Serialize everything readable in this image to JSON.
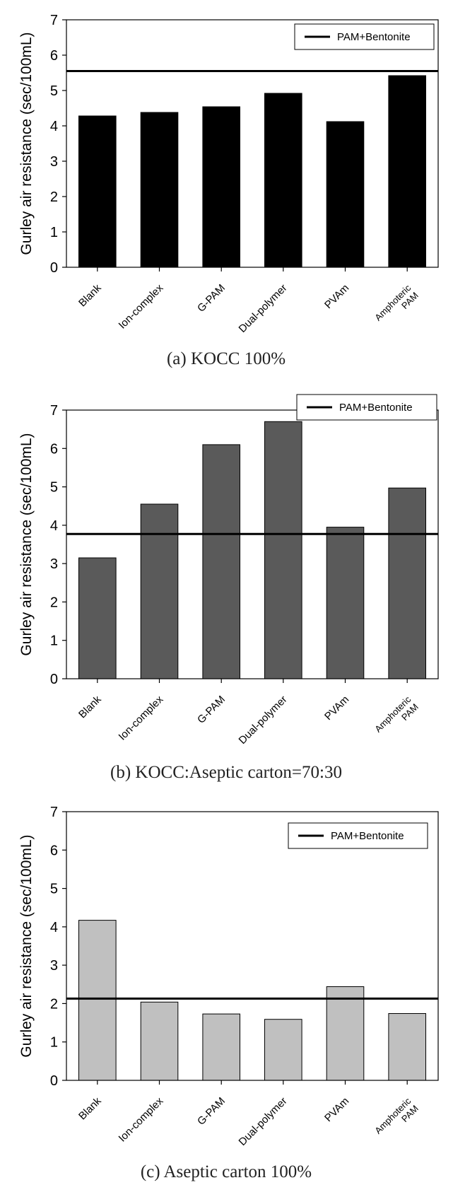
{
  "chart_data": [
    {
      "type": "bar",
      "title": "",
      "caption": "(a) KOCC 100%",
      "ylabel": "Gurley air resistance (sec/100mL)",
      "xlabel": "",
      "ylim": [
        0,
        7
      ],
      "yticks": [
        "0",
        "1",
        "2",
        "3",
        "4",
        "5",
        "6",
        "7"
      ],
      "categories": [
        "Blank",
        "Ion-complex",
        "G-PAM",
        "Dual-polymer",
        "PVAm",
        "Amphoteric PAM"
      ],
      "category_lines": [
        [
          "Blank"
        ],
        [
          "Ion-complex"
        ],
        [
          "G-PAM"
        ],
        [
          "Dual-polymer"
        ],
        [
          "PVAm"
        ],
        [
          "Amphoteric",
          "PAM"
        ]
      ],
      "values": [
        4.28,
        4.38,
        4.54,
        4.92,
        4.12,
        5.42
      ],
      "bar_color": "#000000",
      "reference_line": {
        "name": "PAM+Bentonite",
        "value": 5.55
      },
      "legend_position": "top-right",
      "grid": false
    },
    {
      "type": "bar",
      "title": "",
      "caption": "(b) KOCC:Aseptic carton=70:30",
      "ylabel": "Gurley air resistance (sec/100mL)",
      "xlabel": "",
      "ylim": [
        0,
        7
      ],
      "yticks": [
        "0",
        "1",
        "2",
        "3",
        "4",
        "5",
        "6",
        "7"
      ],
      "categories": [
        "Blank",
        "Ion-complex",
        "G-PAM",
        "Dual-polymer",
        "PVAm",
        "Amphoteric PAM"
      ],
      "category_lines": [
        [
          "Blank"
        ],
        [
          "Ion-complex"
        ],
        [
          "G-PAM"
        ],
        [
          "Dual-polymer"
        ],
        [
          "PVAm"
        ],
        [
          "Amphoteric",
          "PAM"
        ]
      ],
      "values": [
        3.15,
        4.55,
        6.1,
        6.7,
        3.95,
        4.97
      ],
      "bar_color": "#5a5a5a",
      "reference_line": {
        "name": "PAM+Bentonite",
        "value": 3.77
      },
      "legend_position": "top-right",
      "grid": false
    },
    {
      "type": "bar",
      "title": "",
      "caption": "(c) Aseptic carton 100%",
      "ylabel": "Gurley air resistance (sec/100mL)",
      "xlabel": "",
      "ylim": [
        0,
        7
      ],
      "yticks": [
        "0",
        "1",
        "2",
        "3",
        "4",
        "5",
        "6",
        "7"
      ],
      "categories": [
        "Blank",
        "Ion-complex",
        "G-PAM",
        "Dual-polymer",
        "PVAm",
        "Amphoteric PAM"
      ],
      "category_lines": [
        [
          "Blank"
        ],
        [
          "Ion-complex"
        ],
        [
          "G-PAM"
        ],
        [
          "Dual-polymer"
        ],
        [
          "PVAm"
        ],
        [
          "Amphoteric",
          "PAM"
        ]
      ],
      "values": [
        4.17,
        2.04,
        1.73,
        1.59,
        2.44,
        1.74
      ],
      "bar_color": "#c0c0c0",
      "reference_line": {
        "name": "PAM+Bentonite",
        "value": 2.13
      },
      "legend_position": "top-right",
      "grid": false
    }
  ]
}
